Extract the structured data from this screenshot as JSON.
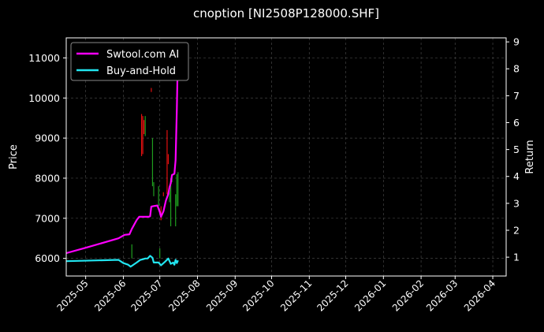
{
  "chart_data": {
    "type": "line",
    "title": "cnoption [NI2508P128000.SHF]",
    "ylabel_left": "Price",
    "ylabel_right": "Return",
    "x_ticks": [
      "2025-05",
      "2025-06",
      "2025-07",
      "2025-08",
      "2025-09",
      "2025-10",
      "2025-11",
      "2025-12",
      "2026-01",
      "2026-02",
      "2026-03",
      "2026-04"
    ],
    "xlim": [
      "2025-04-15",
      "2026-04-12"
    ],
    "ylim_left": [
      5560,
      11500
    ],
    "ylim_right": [
      0.3,
      9.15
    ],
    "y_ticks_left": [
      6000,
      7000,
      8000,
      9000,
      10000,
      11000
    ],
    "y_ticks_right": [
      1,
      2,
      3,
      4,
      5,
      6,
      7,
      8,
      9
    ],
    "grid": true,
    "legend_position": "top-left",
    "colors": {
      "swtool": "#ff00ff",
      "buyhold": "#22e5f0",
      "up_candle": "#1f9e1f",
      "down_candle": "#e01010",
      "grid": "#444444",
      "text": "#ffffff"
    },
    "candles": [
      {
        "date": "2025-06-08",
        "low": 6000,
        "high": 6350,
        "dir": "up"
      },
      {
        "date": "2025-06-16",
        "low": 8550,
        "high": 9600,
        "dir": "down"
      },
      {
        "date": "2025-06-17",
        "low": 8600,
        "high": 9550,
        "dir": "down"
      },
      {
        "date": "2025-06-18",
        "low": 9100,
        "high": 9450,
        "dir": "down"
      },
      {
        "date": "2025-06-19",
        "low": 9050,
        "high": 9550,
        "dir": "up"
      },
      {
        "date": "2025-06-24",
        "low": 10150,
        "high": 10250,
        "dir": "down"
      },
      {
        "date": "2025-06-25",
        "low": 7800,
        "high": 9000,
        "dir": "up"
      },
      {
        "date": "2025-06-26",
        "low": 7550,
        "high": 7900,
        "dir": "up"
      },
      {
        "date": "2025-06-30",
        "low": 7300,
        "high": 7800,
        "dir": "up"
      },
      {
        "date": "2025-07-01",
        "low": 6000,
        "high": 6250,
        "dir": "up"
      },
      {
        "date": "2025-07-02",
        "low": 6950,
        "high": 7300,
        "dir": "down"
      },
      {
        "date": "2025-07-04",
        "low": 7550,
        "high": 7650,
        "dir": "down"
      },
      {
        "date": "2025-07-07",
        "low": 7600,
        "high": 9200,
        "dir": "down"
      },
      {
        "date": "2025-07-08",
        "low": 8350,
        "high": 8600,
        "dir": "down"
      },
      {
        "date": "2025-07-09",
        "low": 7400,
        "high": 7800,
        "dir": "up"
      },
      {
        "date": "2025-07-10",
        "low": 6800,
        "high": 8000,
        "dir": "up"
      },
      {
        "date": "2025-07-11",
        "low": 7900,
        "high": 8100,
        "dir": "up"
      },
      {
        "date": "2025-07-14",
        "low": 6800,
        "high": 7600,
        "dir": "up"
      },
      {
        "date": "2025-07-15",
        "low": 7300,
        "high": 8100,
        "dir": "up"
      },
      {
        "date": "2025-07-16",
        "low": 7300,
        "high": 8150,
        "dir": "up"
      }
    ],
    "series": [
      {
        "name": "Swtool.com AI",
        "axis": "right",
        "points": [
          [
            "2025-04-15",
            1.15
          ],
          [
            "2025-05-01",
            1.35
          ],
          [
            "2025-05-28",
            1.7
          ],
          [
            "2025-06-02",
            1.83
          ],
          [
            "2025-06-06",
            1.85
          ],
          [
            "2025-06-08",
            2.05
          ],
          [
            "2025-06-12",
            2.38
          ],
          [
            "2025-06-14",
            2.5
          ],
          [
            "2025-06-22",
            2.5
          ],
          [
            "2025-06-23",
            2.52
          ],
          [
            "2025-06-24",
            2.88
          ],
          [
            "2025-06-26",
            2.9
          ],
          [
            "2025-06-29",
            2.92
          ],
          [
            "2025-07-01",
            2.68
          ],
          [
            "2025-07-02",
            2.5
          ],
          [
            "2025-07-04",
            2.7
          ],
          [
            "2025-07-06",
            3.1
          ],
          [
            "2025-07-08",
            3.35
          ],
          [
            "2025-07-09",
            3.6
          ],
          [
            "2025-07-10",
            3.75
          ],
          [
            "2025-07-11",
            4.05
          ],
          [
            "2025-07-13",
            4.1
          ],
          [
            "2025-07-14",
            4.6
          ],
          [
            "2025-07-15",
            6.5
          ],
          [
            "2025-07-16",
            8.8
          ]
        ]
      },
      {
        "name": "Buy-and-Hold",
        "axis": "right",
        "points": [
          [
            "2025-04-15",
            0.85
          ],
          [
            "2025-05-28",
            0.9
          ],
          [
            "2025-06-01",
            0.78
          ],
          [
            "2025-06-05",
            0.72
          ],
          [
            "2025-06-07",
            0.65
          ],
          [
            "2025-06-12",
            0.8
          ],
          [
            "2025-06-15",
            0.9
          ],
          [
            "2025-06-17",
            0.92
          ],
          [
            "2025-06-19",
            0.95
          ],
          [
            "2025-06-21",
            0.95
          ],
          [
            "2025-06-23",
            1.05
          ],
          [
            "2025-06-25",
            0.98
          ],
          [
            "2025-06-26",
            0.8
          ],
          [
            "2025-06-30",
            0.8
          ],
          [
            "2025-07-02",
            0.7
          ],
          [
            "2025-07-05",
            0.82
          ],
          [
            "2025-07-08",
            0.95
          ],
          [
            "2025-07-10",
            0.75
          ],
          [
            "2025-07-12",
            0.8
          ],
          [
            "2025-07-13",
            0.72
          ],
          [
            "2025-07-14",
            0.9
          ],
          [
            "2025-07-15",
            0.78
          ],
          [
            "2025-07-16",
            0.88
          ]
        ]
      }
    ]
  }
}
